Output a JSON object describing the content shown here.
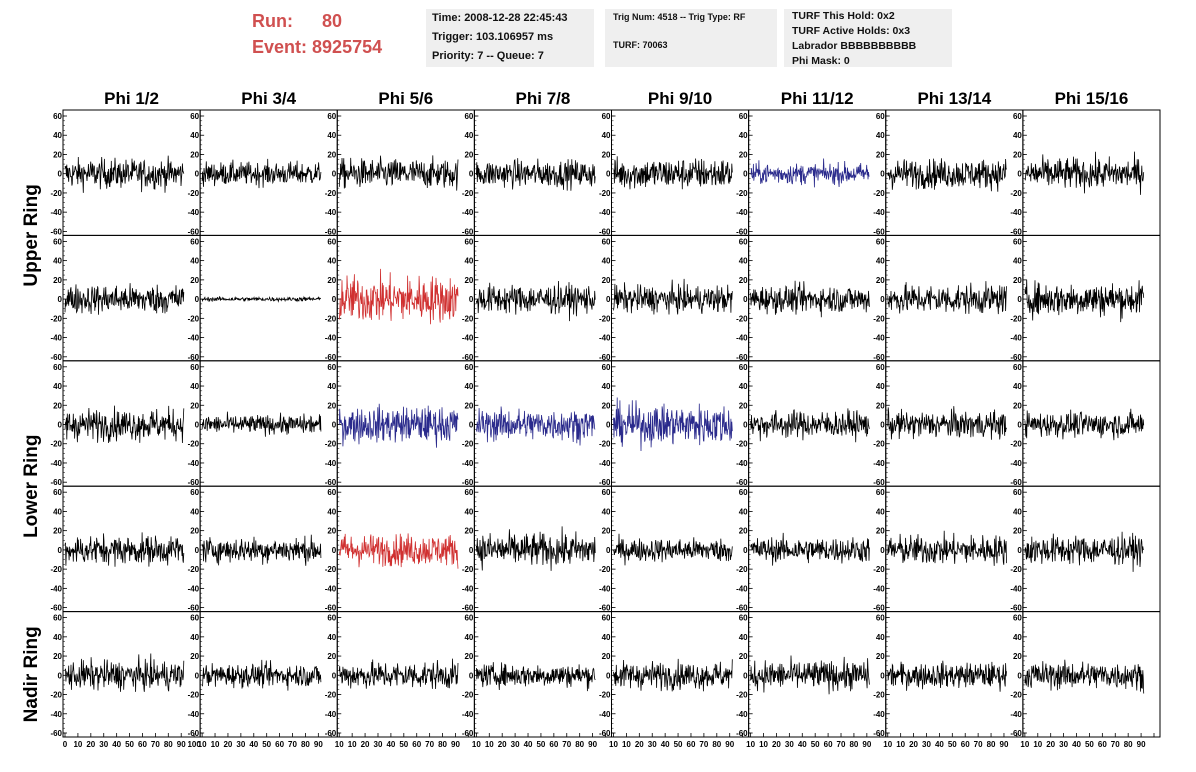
{
  "header": {
    "run_label": "Run:",
    "run_value": "80",
    "event_label": "Event:",
    "event_value": "8925754",
    "time": "Time: 2008-12-28 22:45:43",
    "trigger": "Trigger: 103.106957 ms",
    "priority": "Priority: 7 -- Queue: 7",
    "trig_num": "Trig Num: 4518 -- Trig Type: RF",
    "turf": "TURF: 70063",
    "turf_hold": "TURF This Hold: 0x2",
    "turf_active": "TURF Active Holds: 0x3",
    "labrador": "Labrador BBBBBBBBBB",
    "phi_mask": "Phi Mask: 0"
  },
  "colors": {
    "normal": "#000000",
    "red": "#d03030",
    "blue": "#2a2a8c",
    "run_text": "#d05050"
  },
  "chart_data": {
    "type": "line",
    "columns": [
      "Phi 1/2",
      "Phi 3/4",
      "Phi 5/6",
      "Phi 7/8",
      "Phi 9/10",
      "Phi 11/12",
      "Phi 13/14",
      "Phi 15/16"
    ],
    "ring_labels": [
      "Upper Ring",
      "Lower Ring",
      "Nadir Ring"
    ],
    "rows": 5,
    "ylim": [
      -60,
      60
    ],
    "yticks": [
      "60",
      "40",
      "20",
      "0",
      "-20",
      "-40",
      "-60"
    ],
    "xlim": [
      0,
      100
    ],
    "xticks": [
      "0",
      "10",
      "20",
      "30",
      "40",
      "50",
      "60",
      "70",
      "80",
      "90",
      "100"
    ],
    "xtick_label_prefix": "1",
    "amplitudes": [
      [
        14,
        11,
        14,
        13,
        15,
        10,
        14,
        15
      ],
      [
        14,
        2,
        22,
        14,
        13,
        13,
        14,
        16
      ],
      [
        15,
        9,
        17,
        15,
        19,
        13,
        13,
        12
      ],
      [
        14,
        12,
        15,
        16,
        11,
        12,
        14,
        14
      ],
      [
        14,
        11,
        13,
        11,
        13,
        14,
        12,
        13
      ]
    ],
    "trace_colors": [
      [
        "normal",
        "normal",
        "normal",
        "normal",
        "normal",
        "blue",
        "normal",
        "normal"
      ],
      [
        "normal",
        "normal",
        "red",
        "normal",
        "normal",
        "normal",
        "normal",
        "normal"
      ],
      [
        "normal",
        "normal",
        "blue",
        "blue",
        "blue",
        "normal",
        "normal",
        "normal"
      ],
      [
        "normal",
        "normal",
        "red",
        "normal",
        "normal",
        "normal",
        "normal",
        "normal"
      ],
      [
        "normal",
        "normal",
        "normal",
        "normal",
        "normal",
        "normal",
        "normal",
        "normal"
      ]
    ]
  }
}
